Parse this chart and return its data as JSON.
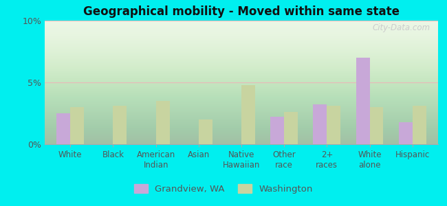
{
  "title": "Geographical mobility - Moved within same state",
  "categories": [
    "White",
    "Black",
    "American\nIndian",
    "Asian",
    "Native\nHawaiian",
    "Other\nrace",
    "2+\nraces",
    "White\nalone",
    "Hispanic"
  ],
  "grandview": [
    2.5,
    0.0,
    0.0,
    0.0,
    0.0,
    2.2,
    3.2,
    7.0,
    1.8
  ],
  "washington": [
    3.0,
    3.1,
    3.5,
    2.0,
    4.8,
    2.6,
    3.1,
    3.0,
    3.1
  ],
  "grandview_color": "#c8a8d8",
  "washington_color": "#c8d4a0",
  "plot_bg_color": "#e8f5e0",
  "outer_bg": "#00efef",
  "ylim": [
    0,
    10
  ],
  "yticks": [
    0,
    5,
    10
  ],
  "ytick_labels": [
    "0%",
    "5%",
    "10%"
  ],
  "legend_grandview": "Grandview, WA",
  "legend_washington": "Washington",
  "bar_width": 0.32,
  "watermark": "City-Data.com"
}
